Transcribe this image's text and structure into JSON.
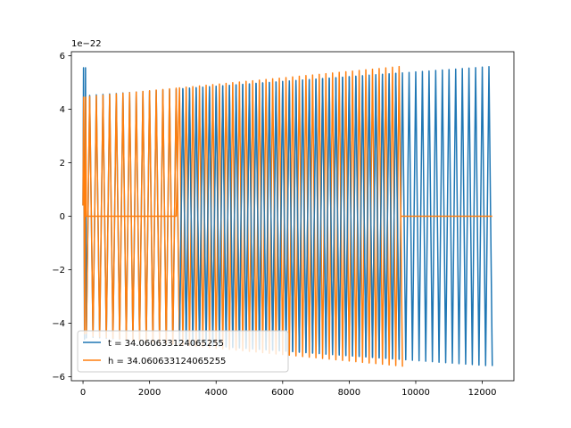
{
  "chart_data": {
    "type": "line",
    "title": "",
    "xlabel": "",
    "ylabel": "",
    "y_offset_label": "1e−22",
    "xlim": [
      -350,
      12950
    ],
    "ylim": [
      -6.15,
      6.15
    ],
    "x_ticks": [
      0,
      2000,
      4000,
      6000,
      8000,
      10000,
      12000
    ],
    "x_tick_labels": [
      "0",
      "2000",
      "4000",
      "6000",
      "8000",
      "10000",
      "12000"
    ],
    "y_ticks": [
      -6,
      -4,
      -2,
      0,
      2,
      4,
      6
    ],
    "y_tick_labels": [
      "−6",
      "−4",
      "−2",
      "0",
      "2",
      "4",
      "6"
    ],
    "grid": false,
    "legend_position": "lower-left",
    "series": [
      {
        "name": "t = 34.060633124065255",
        "color": "#1f77b4",
        "shape": "oscillation",
        "x_start": 0,
        "x_end": 12300,
        "amplitude_start": 4.5,
        "amplitude_end": 5.6,
        "period": 200,
        "initial_spike": 5.55,
        "description_of_points": [
          [
            0,
            0.4
          ],
          [
            30,
            5.55
          ],
          [
            60,
            -4.6
          ],
          [
            100,
            5.55
          ],
          [
            3000,
            4.55
          ],
          [
            6000,
            4.85
          ],
          [
            9000,
            5.2
          ],
          [
            12300,
            5.6
          ]
        ]
      },
      {
        "name": "h = 34.060633124065255",
        "color": "#ff7f0e",
        "shape": "oscillation",
        "x_start": 0,
        "x_end": 9550,
        "amplitude_start": 4.45,
        "amplitude_end": 5.6,
        "period": 200,
        "flat_segments": [
          [
            100,
            2800,
            0
          ],
          [
            9550,
            12300,
            0
          ]
        ],
        "description_of_points": [
          [
            0,
            0.4
          ],
          [
            3000,
            4.7
          ],
          [
            6000,
            5.05
          ],
          [
            9500,
            5.6
          ]
        ]
      }
    ]
  }
}
